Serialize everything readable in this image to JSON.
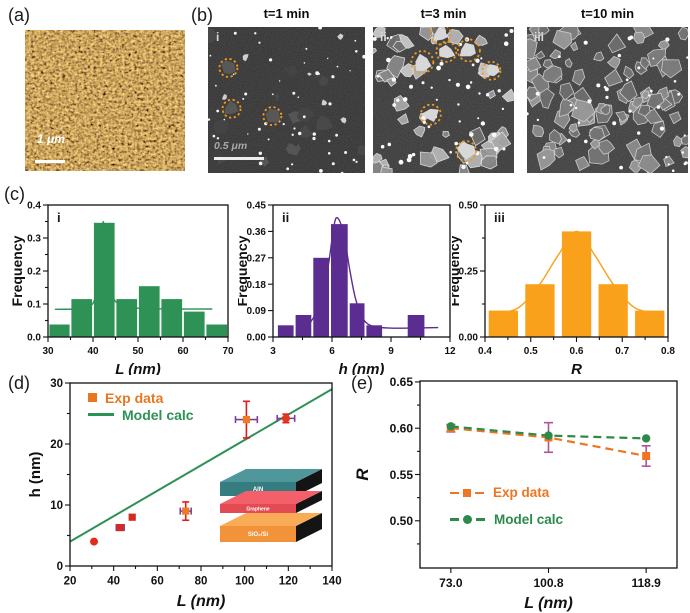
{
  "panels": {
    "a": {
      "label": "(a)",
      "scale_bar_text": "1 μm"
    },
    "b": {
      "label": "(b)",
      "titles": [
        "t=1 min",
        "t=3 min",
        "t=10 min"
      ],
      "sub_labels": [
        "i",
        "ii",
        "iii"
      ],
      "scale_bar_text": "0.5 μm"
    },
    "c": {
      "label": "(c)"
    },
    "d": {
      "label": "(d)",
      "legend": [
        {
          "label": "Exp data",
          "color": "#e87722"
        },
        {
          "label": "Model calc",
          "color": "#2e9155"
        }
      ]
    },
    "e": {
      "label": "(e)",
      "legend": [
        {
          "label": "Exp data",
          "color": "#ee7622"
        },
        {
          "label": "Model calc",
          "color": "#2c8a4a"
        }
      ]
    }
  },
  "chart_data": [
    {
      "id": "hist_L",
      "panel": "c-i",
      "type": "bar",
      "label": "i",
      "xlabel": "L (nm)",
      "ylabel": "Frequency",
      "xlim": [
        30,
        70
      ],
      "ylim": [
        0,
        0.4
      ],
      "xticks": [
        "30",
        "40",
        "50",
        "60",
        "70"
      ],
      "xminors": [
        35,
        45,
        55,
        65
      ],
      "yticks": [
        "0.0",
        "0.1",
        "0.2",
        "0.3",
        "0.4"
      ],
      "yminors": [
        0.05,
        0.15,
        0.25,
        0.35
      ],
      "bar_color": "#2e9155",
      "bins": [
        {
          "x0": 30.3,
          "x1": 34.8,
          "v": 0.038
        },
        {
          "x0": 35.2,
          "x1": 39.8,
          "v": 0.115
        },
        {
          "x0": 40.2,
          "x1": 44.8,
          "v": 0.346
        },
        {
          "x0": 45.2,
          "x1": 49.8,
          "v": 0.115
        },
        {
          "x0": 50.2,
          "x1": 54.8,
          "v": 0.154
        },
        {
          "x0": 55.2,
          "x1": 59.8,
          "v": 0.115
        },
        {
          "x0": 60.2,
          "x1": 64.8,
          "v": 0.077
        },
        {
          "x0": 65.2,
          "x1": 69.8,
          "v": 0.038
        }
      ],
      "curve": [
        [
          31.5,
          0.084
        ],
        [
          36,
          0.085
        ],
        [
          39,
          0.09
        ],
        [
          40.5,
          0.12
        ],
        [
          41.5,
          0.21
        ],
        [
          42.3,
          0.35
        ],
        [
          43.2,
          0.21
        ],
        [
          44.5,
          0.12
        ],
        [
          46,
          0.1
        ],
        [
          48,
          0.09
        ],
        [
          52,
          0.086
        ],
        [
          58,
          0.085
        ],
        [
          66.5,
          0.085
        ]
      ]
    },
    {
      "id": "hist_h",
      "panel": "c-ii",
      "type": "bar",
      "label": "ii",
      "xlabel": "h (nm)",
      "ylabel": "Frequency",
      "xlim": [
        3,
        12
      ],
      "ylim": [
        0,
        0.45
      ],
      "xticks": [
        "3",
        "6",
        "9",
        "12"
      ],
      "xminors": [
        4.5,
        7.5,
        10.5
      ],
      "yticks": [
        "0.00",
        "0.09",
        "0.18",
        "0.27",
        "0.36",
        "0.45"
      ],
      "yminors": [],
      "bar_color": "#5b2d90",
      "bins": [
        {
          "x0": 3.25,
          "x1": 4.05,
          "v": 0.04
        },
        {
          "x0": 4.15,
          "x1": 4.95,
          "v": 0.075
        },
        {
          "x0": 5.05,
          "x1": 5.85,
          "v": 0.27
        },
        {
          "x0": 5.95,
          "x1": 6.8,
          "v": 0.385
        },
        {
          "x0": 6.9,
          "x1": 7.65,
          "v": 0.115
        },
        {
          "x0": 7.75,
          "x1": 8.55,
          "v": 0.04
        },
        {
          "x0": 9.85,
          "x1": 10.7,
          "v": 0.075
        }
      ],
      "curve": [
        [
          4.4,
          0.033
        ],
        [
          4.9,
          0.05
        ],
        [
          5.4,
          0.12
        ],
        [
          5.8,
          0.24
        ],
        [
          6.1,
          0.38
        ],
        [
          6.3,
          0.405
        ],
        [
          6.6,
          0.35
        ],
        [
          6.9,
          0.23
        ],
        [
          7.2,
          0.13
        ],
        [
          7.6,
          0.06
        ],
        [
          8.1,
          0.036
        ],
        [
          8.8,
          0.031
        ],
        [
          9.6,
          0.03
        ],
        [
          11.4,
          0.032
        ]
      ]
    },
    {
      "id": "hist_R",
      "panel": "c-iii",
      "type": "bar",
      "label": "iii",
      "xlabel": "R",
      "ylabel": "Frequency",
      "xlim": [
        0.4,
        0.8
      ],
      "ylim": [
        0,
        0.5
      ],
      "xticks": [
        "0.4",
        "0.5",
        "0.6",
        "0.7",
        "0.8"
      ],
      "xminors": [
        0.45,
        0.55,
        0.65,
        0.75
      ],
      "yticks": [
        "0.00",
        "0.25",
        "0.50"
      ],
      "yminors": [
        0.125,
        0.375
      ],
      "bar_color": "#f9a11b",
      "bins": [
        {
          "x0": 0.408,
          "x1": 0.472,
          "v": 0.1
        },
        {
          "x0": 0.488,
          "x1": 0.552,
          "v": 0.2
        },
        {
          "x0": 0.568,
          "x1": 0.632,
          "v": 0.4
        },
        {
          "x0": 0.648,
          "x1": 0.712,
          "v": 0.2
        },
        {
          "x0": 0.728,
          "x1": 0.792,
          "v": 0.1
        }
      ],
      "curve": [
        [
          0.415,
          0.088
        ],
        [
          0.45,
          0.096
        ],
        [
          0.48,
          0.12
        ],
        [
          0.52,
          0.2
        ],
        [
          0.56,
          0.31
        ],
        [
          0.6,
          0.4
        ],
        [
          0.64,
          0.31
        ],
        [
          0.68,
          0.2
        ],
        [
          0.72,
          0.12
        ],
        [
          0.75,
          0.097
        ],
        [
          0.785,
          0.09
        ]
      ]
    },
    {
      "id": "scatter_hL",
      "panel": "d",
      "type": "scatter",
      "xlabel": "L (nm)",
      "ylabel": "h (nm)",
      "xlim": [
        20,
        140
      ],
      "ylim": [
        0,
        30
      ],
      "xticks": [
        "20",
        "40",
        "60",
        "80",
        "100",
        "120",
        "140"
      ],
      "xminors": [
        30,
        50,
        70,
        90,
        110,
        130
      ],
      "yticks": [
        "0",
        "10",
        "20",
        "30"
      ],
      "yminors": [
        5,
        15,
        25
      ],
      "legend": [
        "Exp data",
        "Model calc"
      ],
      "model_line": {
        "x0": 20,
        "y0": 4,
        "x1": 140,
        "y1": 29,
        "color": "#2e9155"
      },
      "xerr_color": "#7b3fa0",
      "yerr_color": "#e01b1b",
      "points": [
        {
          "x": 31,
          "y": 4,
          "marker": "circle",
          "color": "#e02b1d"
        },
        {
          "x": 43,
          "y": 6.3,
          "xerr": 1.8,
          "marker": "square",
          "color": "#d62a1e"
        },
        {
          "x": 48.5,
          "y": 8,
          "marker": "square",
          "color": "#d62a1e"
        },
        {
          "x": 73,
          "y": 9,
          "xerr": 2.5,
          "yerr": 1.5,
          "marker": "square",
          "color": "#ee7b24"
        },
        {
          "x": 100.8,
          "y": 24,
          "xerr": 5,
          "yerr": 3,
          "marker": "square",
          "color": "#ee7b24"
        },
        {
          "x": 118.9,
          "y": 24.2,
          "xerr": 4,
          "yerr": 0.7,
          "marker": "circle",
          "color": "#e0391f"
        }
      ],
      "inset_layers": [
        {
          "label": "AlN",
          "top": "#4f979b",
          "front": "#357d81"
        },
        {
          "label": "Graphene",
          "top": "#f4606a",
          "front": "#e24a54"
        },
        {
          "label": "SiO₂/Si",
          "top": "#f9ab56",
          "front": "#f29339"
        }
      ],
      "inset_side_color": "#141414"
    },
    {
      "id": "line_R",
      "panel": "e",
      "type": "line",
      "xlabel": "L (nm)",
      "ylabel": "R",
      "categories": [
        "73.0",
        "100.8",
        "118.9"
      ],
      "ylim": [
        0.449,
        0.651
      ],
      "yticks": [
        "0.50",
        "0.55",
        "0.60",
        "0.65"
      ],
      "yminors": [
        0.475,
        0.525,
        0.575,
        0.625
      ],
      "err_color": "#b5519c",
      "series": [
        {
          "name": "Exp data",
          "color": "#ee7622",
          "marker": "square",
          "values": [
            0.6,
            0.59,
            0.57
          ],
          "yerr": [
            0.004,
            0.016,
            0.011
          ]
        },
        {
          "name": "Model calc",
          "color": "#2c8a4a",
          "marker": "circle",
          "values": [
            0.602,
            0.592,
            0.589
          ],
          "yerr": [
            0,
            0,
            0
          ]
        }
      ]
    }
  ]
}
